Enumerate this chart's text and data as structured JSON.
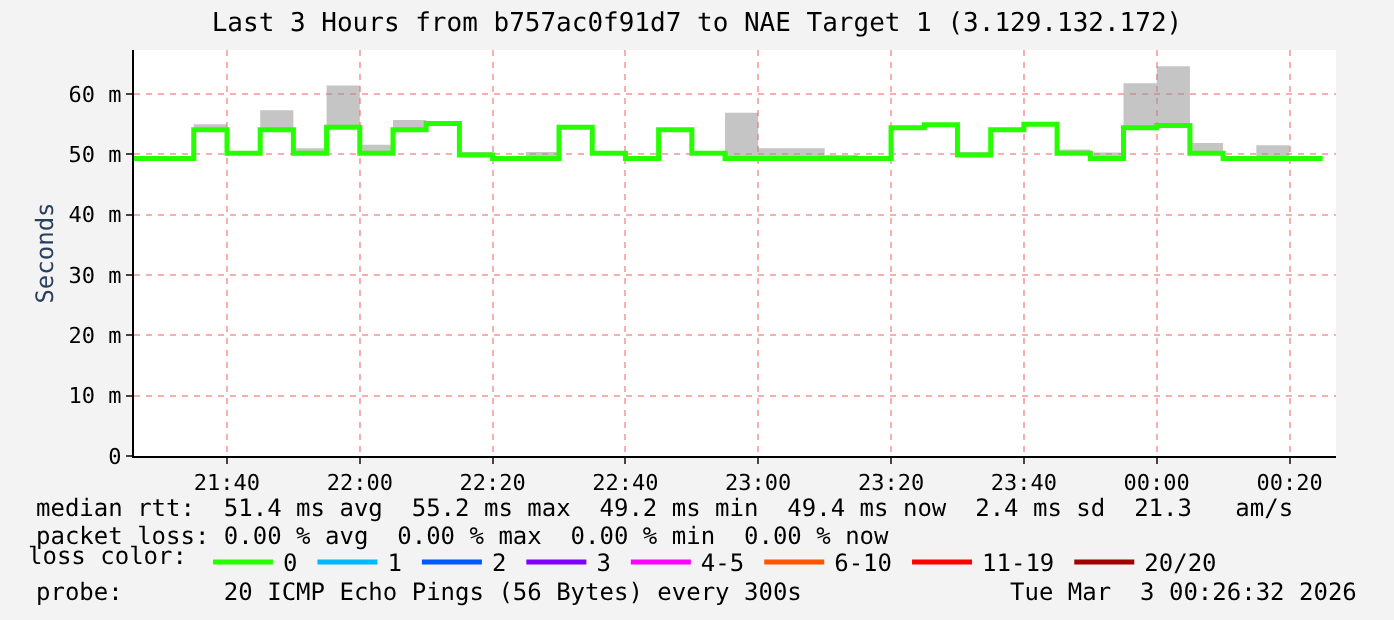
{
  "chart_data": {
    "type": "step",
    "title": "Last 3 Hours from b757ac0f91d7 to NAE Target 1 (3.129.132.172)",
    "ylabel": "Seconds",
    "legend_title": "loss color:",
    "x": [
      "2026-03-02T21:26",
      "2026-03-02T21:35",
      "2026-03-02T21:40",
      "2026-03-02T21:45",
      "2026-03-02T21:50",
      "2026-03-02T21:55",
      "2026-03-02T22:00",
      "2026-03-02T22:05",
      "2026-03-02T22:10",
      "2026-03-02T22:15",
      "2026-03-02T22:20",
      "2026-03-02T22:25",
      "2026-03-02T22:30",
      "2026-03-02T22:35",
      "2026-03-02T22:40",
      "2026-03-02T22:45",
      "2026-03-02T22:50",
      "2026-03-02T22:55",
      "2026-03-02T23:00",
      "2026-03-02T23:05",
      "2026-03-02T23:10",
      "2026-03-02T23:15",
      "2026-03-02T23:20",
      "2026-03-02T23:25",
      "2026-03-02T23:30",
      "2026-03-02T23:35",
      "2026-03-02T23:40",
      "2026-03-02T23:45",
      "2026-03-02T23:50",
      "2026-03-02T23:55",
      "2026-03-03T00:00",
      "2026-03-03T00:05",
      "2026-03-03T00:10",
      "2026-03-03T00:15",
      "2026-03-03T00:20",
      "2026-03-03T00:25"
    ],
    "series": [
      {
        "name": "0",
        "color": "#26ff00",
        "values": [
          49.3,
          54.1,
          50.2,
          54.1,
          50.2,
          54.5,
          50.2,
          54.1,
          55.1,
          49.9,
          49.3,
          49.3,
          54.5,
          50.2,
          49.3,
          54.1,
          50.2,
          49.3,
          49.3,
          49.3,
          49.3,
          49.3,
          54.4,
          54.9,
          49.9,
          54.1,
          55.0,
          50.2,
          49.3,
          54.4,
          54.8,
          50.2,
          49.3,
          49.3,
          49.3,
          49.3
        ],
        "lower": [
          49.3,
          54.1,
          50.2,
          54.1,
          50.2,
          54.5,
          50.2,
          54.1,
          55.1,
          49.9,
          49.3,
          49.3,
          54.5,
          50.2,
          49.3,
          54.1,
          50.2,
          49.3,
          49.3,
          49.3,
          49.3,
          49.3,
          54.4,
          54.9,
          49.9,
          54.1,
          55.0,
          50.2,
          49.3,
          54.4,
          54.8,
          50.2,
          49.3,
          49.3,
          49.3,
          49.3
        ],
        "upper": [
          49.3,
          55.0,
          50.2,
          57.3,
          51.0,
          61.4,
          51.6,
          55.7,
          55.1,
          50.4,
          49.3,
          50.4,
          54.5,
          50.2,
          49.3,
          54.1,
          50.2,
          56.9,
          51.0,
          51.0,
          49.9,
          49.3,
          54.4,
          54.9,
          50.4,
          54.1,
          55.0,
          50.8,
          50.3,
          61.8,
          64.6,
          51.9,
          49.3,
          51.5,
          49.3,
          49.3
        ]
      },
      {
        "name": "1",
        "color": "#00b8ff",
        "values": [
          null,
          null,
          null,
          null,
          null,
          null,
          null,
          null,
          null,
          null,
          null,
          null,
          null,
          null,
          null,
          null,
          null,
          null,
          null,
          null,
          null,
          null,
          null,
          null,
          null,
          null,
          null,
          null,
          null,
          null,
          null,
          null,
          null,
          null,
          null,
          null
        ]
      },
      {
        "name": "2",
        "color": "#0059ff",
        "values": [
          null,
          null,
          null,
          null,
          null,
          null,
          null,
          null,
          null,
          null,
          null,
          null,
          null,
          null,
          null,
          null,
          null,
          null,
          null,
          null,
          null,
          null,
          null,
          null,
          null,
          null,
          null,
          null,
          null,
          null,
          null,
          null,
          null,
          null,
          null,
          null
        ]
      },
      {
        "name": "3",
        "color": "#7e00ff",
        "values": [
          null,
          null,
          null,
          null,
          null,
          null,
          null,
          null,
          null,
          null,
          null,
          null,
          null,
          null,
          null,
          null,
          null,
          null,
          null,
          null,
          null,
          null,
          null,
          null,
          null,
          null,
          null,
          null,
          null,
          null,
          null,
          null,
          null,
          null,
          null,
          null
        ]
      },
      {
        "name": "4-5",
        "color": "#ff00ff",
        "values": [
          null,
          null,
          null,
          null,
          null,
          null,
          null,
          null,
          null,
          null,
          null,
          null,
          null,
          null,
          null,
          null,
          null,
          null,
          null,
          null,
          null,
          null,
          null,
          null,
          null,
          null,
          null,
          null,
          null,
          null,
          null,
          null,
          null,
          null,
          null,
          null
        ]
      },
      {
        "name": "6-10",
        "color": "#ff5500",
        "values": [
          null,
          null,
          null,
          null,
          null,
          null,
          null,
          null,
          null,
          null,
          null,
          null,
          null,
          null,
          null,
          null,
          null,
          null,
          null,
          null,
          null,
          null,
          null,
          null,
          null,
          null,
          null,
          null,
          null,
          null,
          null,
          null,
          null,
          null,
          null,
          null
        ]
      },
      {
        "name": "11-19",
        "color": "#ff0000",
        "values": [
          null,
          null,
          null,
          null,
          null,
          null,
          null,
          null,
          null,
          null,
          null,
          null,
          null,
          null,
          null,
          null,
          null,
          null,
          null,
          null,
          null,
          null,
          null,
          null,
          null,
          null,
          null,
          null,
          null,
          null,
          null,
          null,
          null,
          null,
          null,
          null
        ]
      },
      {
        "name": "20/20",
        "color": "#a10000",
        "values": [
          null,
          null,
          null,
          null,
          null,
          null,
          null,
          null,
          null,
          null,
          null,
          null,
          null,
          null,
          null,
          null,
          null,
          null,
          null,
          null,
          null,
          null,
          null,
          null,
          null,
          null,
          null,
          null,
          null,
          null,
          null,
          null,
          null,
          null,
          null,
          null
        ]
      }
    ],
    "xlim": [
      "2026-03-02T21:26",
      "2026-03-03T00:27"
    ],
    "xticks": [
      {
        "value": "2026-03-02T21:40",
        "label": "21:40"
      },
      {
        "value": "2026-03-02T22:00",
        "label": "22:00"
      },
      {
        "value": "2026-03-02T22:20",
        "label": "22:20"
      },
      {
        "value": "2026-03-02T22:40",
        "label": "22:40"
      },
      {
        "value": "2026-03-02T23:00",
        "label": "23:00"
      },
      {
        "value": "2026-03-02T23:20",
        "label": "23:20"
      },
      {
        "value": "2026-03-02T23:40",
        "label": "23:40"
      },
      {
        "value": "2026-03-03T00:00",
        "label": "00:00"
      },
      {
        "value": "2026-03-03T00:20",
        "label": "00:20"
      }
    ],
    "ylim": [
      0,
      67.3
    ],
    "yticks": [
      0,
      {
        "value": 10,
        "label": "10 m"
      },
      {
        "value": 20,
        "label": "20 m"
      },
      {
        "value": 30,
        "label": "30 m"
      },
      {
        "value": 40,
        "label": "40 m"
      },
      {
        "value": 50,
        "label": "50 m"
      },
      {
        "value": 60,
        "label": "60 m"
      }
    ],
    "grid": true,
    "legend": "bottom",
    "annotations": [
      "median rtt:  51.4 ms avg  55.2 ms max  49.2 ms min  49.4 ms now  2.4 ms sd  21.3   am/s",
      "packet loss: 0.00 % avg  0.00 % max  0.00 % min  0.00 % now",
      "probe:       20 ICMP Echo Pings (56 Bytes) every 300s",
      "Tue Mar  3 00:26:32 2026"
    ]
  }
}
